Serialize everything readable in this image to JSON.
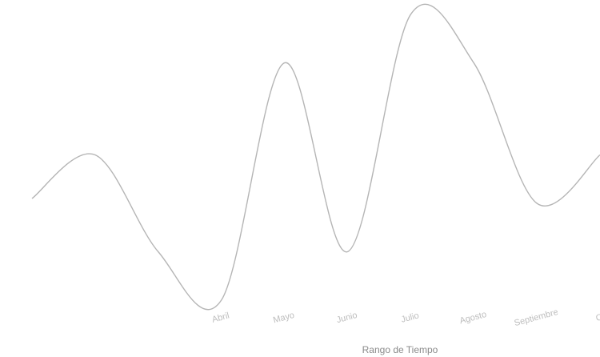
{
  "chart_data": {
    "type": "line",
    "title": "",
    "xlabel": "Rango de Tiempo",
    "ylabel": "",
    "categories": [
      "",
      "",
      "",
      "Abril",
      "Mayo",
      "Junio",
      "Julio",
      "Agosto",
      "Septiembre",
      "O"
    ],
    "ytick_labels": [
      "",
      "",
      "",
      "",
      "",
      ""
    ],
    "ylim": [
      0,
      6
    ],
    "series": [
      {
        "values": [
          2.1,
          3.0,
          1.0,
          0.0,
          4.9,
          1.0,
          5.9,
          4.9,
          2.0,
          3.0
        ]
      }
    ],
    "grid": false,
    "legend": "none",
    "line_color": "#b5b5b5"
  }
}
